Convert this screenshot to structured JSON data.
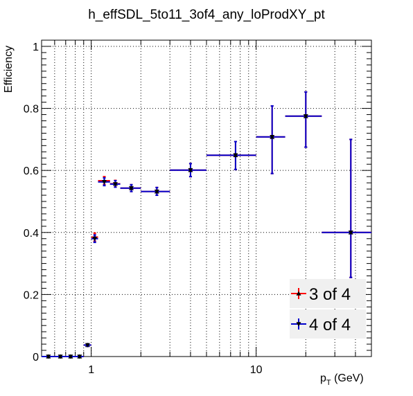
{
  "chart_data": {
    "type": "scatter",
    "title": "h_effSDL_5to11_3of4_any_loProdXY_pt",
    "xlabel": "p_T (GeV)",
    "xlabel_main": "p",
    "xlabel_sub": "T",
    "xlabel_unit": " (GeV)",
    "ylabel": "Efficiency",
    "x_scale": "log",
    "xlim": [
      0.5,
      50
    ],
    "ylim": [
      0,
      1.02
    ],
    "x_ticks": [
      1,
      10
    ],
    "x_tick_labels": [
      "1",
      "10"
    ],
    "y_ticks": [
      0,
      0.2,
      0.4,
      0.6,
      0.8,
      1
    ],
    "y_tick_labels": [
      "0",
      "0.2",
      "0.4",
      "0.6",
      "0.8",
      "1"
    ],
    "grid": true,
    "legend_position": "bottom-right",
    "series": [
      {
        "name": "3 of 4",
        "color": "#ff0000",
        "marker": "triangle-up",
        "points": [
          {
            "x": 0.55,
            "xlo": 0.5,
            "xhi": 0.6,
            "y": 0.0,
            "ylo": 0.0,
            "yhi": 0.003
          },
          {
            "x": 0.65,
            "xlo": 0.6,
            "xhi": 0.7,
            "y": 0.0,
            "ylo": 0.0,
            "yhi": 0.003
          },
          {
            "x": 0.75,
            "xlo": 0.7,
            "xhi": 0.8,
            "y": 0.0,
            "ylo": 0.0,
            "yhi": 0.003
          },
          {
            "x": 0.85,
            "xlo": 0.8,
            "xhi": 0.9,
            "y": 0.0,
            "ylo": 0.0,
            "yhi": 0.003
          },
          {
            "x": 0.95,
            "xlo": 0.9,
            "xhi": 1.0,
            "y": 0.037,
            "ylo": 0.033,
            "yhi": 0.041
          },
          {
            "x": 1.05,
            "xlo": 1.0,
            "xhi": 1.1,
            "y": 0.385,
            "ylo": 0.372,
            "yhi": 0.398
          },
          {
            "x": 1.2,
            "xlo": 1.1,
            "xhi": 1.3,
            "y": 0.567,
            "ylo": 0.555,
            "yhi": 0.58
          },
          {
            "x": 1.4,
            "xlo": 1.3,
            "xhi": 1.5,
            "y": 0.557,
            "ylo": 0.547,
            "yhi": 0.568
          },
          {
            "x": 1.75,
            "xlo": 1.5,
            "xhi": 2.0,
            "y": 0.543,
            "ylo": 0.532,
            "yhi": 0.554
          },
          {
            "x": 2.5,
            "xlo": 2.0,
            "xhi": 3.0,
            "y": 0.532,
            "ylo": 0.52,
            "yhi": 0.545
          },
          {
            "x": 4.0,
            "xlo": 3.0,
            "xhi": 5.0,
            "y": 0.601,
            "ylo": 0.58,
            "yhi": 0.622
          },
          {
            "x": 7.5,
            "xlo": 5.0,
            "xhi": 10.0,
            "y": 0.649,
            "ylo": 0.603,
            "yhi": 0.693
          },
          {
            "x": 12.5,
            "xlo": 10.0,
            "xhi": 15.0,
            "y": 0.708,
            "ylo": 0.59,
            "yhi": 0.808
          },
          {
            "x": 20.0,
            "xlo": 15.0,
            "xhi": 25.0,
            "y": 0.775,
            "ylo": 0.675,
            "yhi": 0.853
          },
          {
            "x": 37.5,
            "xlo": 25.0,
            "xhi": 50.0,
            "y": 0.4,
            "ylo": 0.255,
            "yhi": 0.7
          }
        ]
      },
      {
        "name": "4 of 4",
        "color": "#0000cc",
        "marker": "triangle-down",
        "points": [
          {
            "x": 0.55,
            "xlo": 0.5,
            "xhi": 0.6,
            "y": 0.0,
            "ylo": 0.0,
            "yhi": 0.003
          },
          {
            "x": 0.65,
            "xlo": 0.6,
            "xhi": 0.7,
            "y": 0.0,
            "ylo": 0.0,
            "yhi": 0.003
          },
          {
            "x": 0.75,
            "xlo": 0.7,
            "xhi": 0.8,
            "y": 0.0,
            "ylo": 0.0,
            "yhi": 0.003
          },
          {
            "x": 0.85,
            "xlo": 0.8,
            "xhi": 0.9,
            "y": 0.0,
            "ylo": 0.0,
            "yhi": 0.003
          },
          {
            "x": 0.95,
            "xlo": 0.9,
            "xhi": 1.0,
            "y": 0.037,
            "ylo": 0.033,
            "yhi": 0.041
          },
          {
            "x": 1.05,
            "xlo": 1.0,
            "xhi": 1.1,
            "y": 0.38,
            "ylo": 0.368,
            "yhi": 0.392
          },
          {
            "x": 1.2,
            "xlo": 1.1,
            "xhi": 1.3,
            "y": 0.563,
            "ylo": 0.551,
            "yhi": 0.576
          },
          {
            "x": 1.4,
            "xlo": 1.3,
            "xhi": 1.5,
            "y": 0.556,
            "ylo": 0.546,
            "yhi": 0.567
          },
          {
            "x": 1.75,
            "xlo": 1.5,
            "xhi": 2.0,
            "y": 0.543,
            "ylo": 0.532,
            "yhi": 0.554
          },
          {
            "x": 2.5,
            "xlo": 2.0,
            "xhi": 3.0,
            "y": 0.532,
            "ylo": 0.52,
            "yhi": 0.545
          },
          {
            "x": 4.0,
            "xlo": 3.0,
            "xhi": 5.0,
            "y": 0.601,
            "ylo": 0.58,
            "yhi": 0.622
          },
          {
            "x": 7.5,
            "xlo": 5.0,
            "xhi": 10.0,
            "y": 0.649,
            "ylo": 0.603,
            "yhi": 0.693
          },
          {
            "x": 12.5,
            "xlo": 10.0,
            "xhi": 15.0,
            "y": 0.708,
            "ylo": 0.59,
            "yhi": 0.808
          },
          {
            "x": 20.0,
            "xlo": 15.0,
            "xhi": 25.0,
            "y": 0.775,
            "ylo": 0.675,
            "yhi": 0.853
          },
          {
            "x": 37.5,
            "xlo": 25.0,
            "xhi": 50.0,
            "y": 0.4,
            "ylo": 0.255,
            "yhi": 0.7
          }
        ]
      }
    ]
  }
}
